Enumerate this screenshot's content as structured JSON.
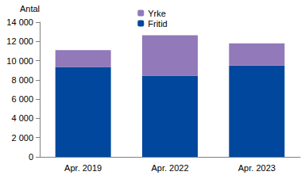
{
  "chart_data": {
    "type": "bar",
    "stacked": true,
    "y_label": "Antal",
    "categories": [
      "Apr. 2019",
      "Apr. 2022",
      "Apr. 2023"
    ],
    "series": [
      {
        "name": "Fritid",
        "color": "#00479d",
        "values": [
          9350,
          8450,
          9500
        ]
      },
      {
        "name": "Yrke",
        "color": "#9179ba",
        "values": [
          1750,
          4200,
          2300
        ]
      }
    ],
    "ylim": [
      0,
      14000
    ],
    "yticks": [
      0,
      {
        "value": 2000,
        "label": "2 000"
      },
      {
        "value": 4000,
        "label": "4 000"
      },
      {
        "value": 6000,
        "label": "6 000"
      },
      {
        "value": 8000,
        "label": "8 000"
      },
      {
        "value": 10000,
        "label": "10 000"
      },
      {
        "value": 12000,
        "label": "12 000"
      },
      {
        "value": 14000,
        "label": "14 000"
      }
    ],
    "grid": false,
    "legend": "top"
  }
}
